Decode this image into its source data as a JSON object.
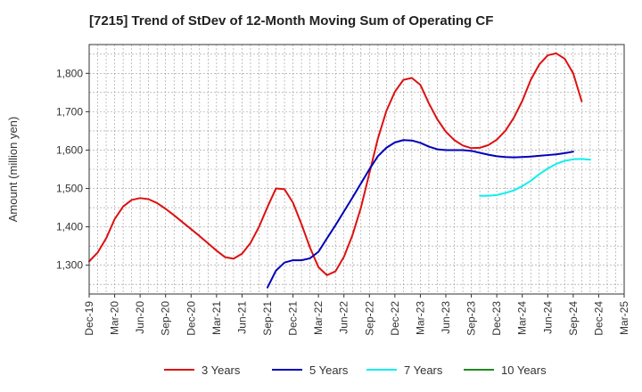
{
  "chart_data": {
    "type": "line",
    "title": "[7215]  Trend of StDev of 12-Month Moving Sum of Operating CF",
    "xlabel": "",
    "ylabel": "Amount (million yen)",
    "x_tick_labels": [
      "Dec-19",
      "Mar-20",
      "Jun-20",
      "Sep-20",
      "Dec-20",
      "Mar-21",
      "Jun-21",
      "Sep-21",
      "Dec-21",
      "Mar-22",
      "Jun-22",
      "Sep-22",
      "Dec-22",
      "Mar-23",
      "Jun-23",
      "Sep-23",
      "Dec-23",
      "Mar-24",
      "Jun-24",
      "Sep-24",
      "Dec-24",
      "Mar-25"
    ],
    "y_ticks": [
      1300,
      1400,
      1500,
      1600,
      1700,
      1800
    ],
    "y_tick_labels": [
      "1,300",
      "1,400",
      "1,500",
      "1,600",
      "1,700",
      "1,800"
    ],
    "ylim": [
      1225,
      1875
    ],
    "grid": true,
    "legend_position": "bottom",
    "series": [
      {
        "name": "3 Years",
        "color": "#dd1111",
        "start_index": 0,
        "values": [
          1310,
          1333,
          1370,
          1420,
          1453,
          1470,
          1475,
          1472,
          1462,
          1447,
          1430,
          1412,
          1394,
          1376,
          1357,
          1338,
          1321,
          1317,
          1330,
          1358,
          1400,
          1452,
          1500,
          1498,
          1463,
          1407,
          1346,
          1295,
          1274,
          1284,
          1322,
          1378,
          1450,
          1540,
          1630,
          1702,
          1752,
          1783,
          1788,
          1770,
          1722,
          1680,
          1648,
          1626,
          1612,
          1605,
          1606,
          1613,
          1627,
          1650,
          1684,
          1728,
          1783,
          1823,
          1847,
          1852,
          1838,
          1800,
          1727
        ]
      },
      {
        "name": "5 Years",
        "color": "#0000bb",
        "start_index": 21,
        "values": [
          1242,
          1286,
          1307,
          1313,
          1313,
          1318,
          1335,
          1370,
          1404,
          1440,
          1476,
          1513,
          1550,
          1584,
          1606,
          1620,
          1626,
          1625,
          1619,
          1609,
          1602,
          1600,
          1600,
          1600,
          1598,
          1593,
          1588,
          1584,
          1582,
          1581,
          1582,
          1583,
          1585,
          1587,
          1589,
          1592,
          1596
        ]
      },
      {
        "name": "7 Years",
        "color": "#11eeee",
        "start_index": 46,
        "values": [
          1481,
          1481,
          1483,
          1488,
          1495,
          1506,
          1520,
          1537,
          1552,
          1564,
          1572,
          1576,
          1577,
          1575
        ]
      },
      {
        "name": "10 Years",
        "color": "#228822",
        "start_index": 0,
        "values": []
      }
    ]
  }
}
